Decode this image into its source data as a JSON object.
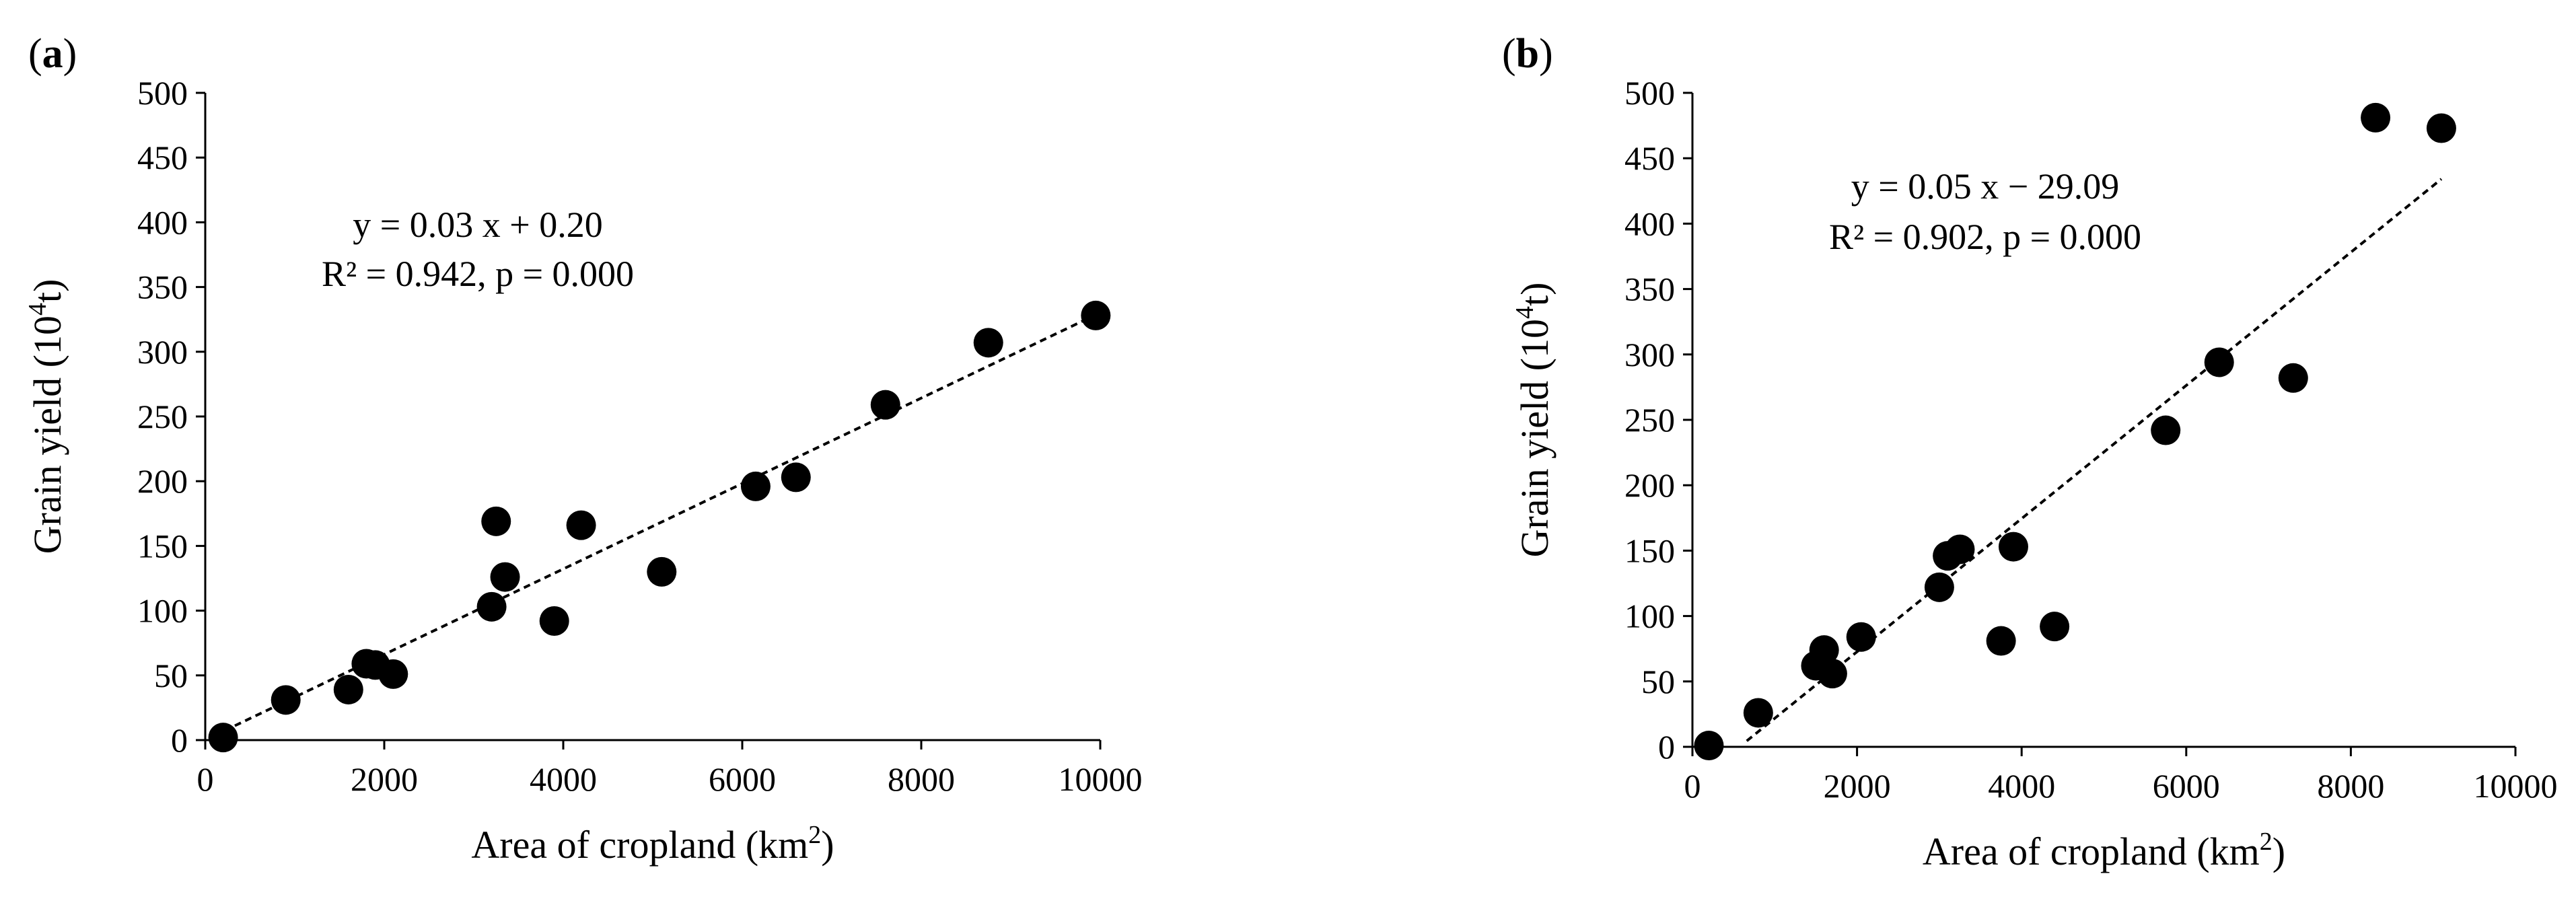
{
  "chart_data": [
    {
      "type": "scatter",
      "panel_label_bold": "a",
      "xlabel": "Area of cropland (km",
      "xlabel_sup": "2",
      "xlabel_end": ")",
      "ylabel": "Grain yield (10",
      "ylabel_sup": "4",
      "ylabel_end": "t)",
      "xlim": [
        0,
        10000
      ],
      "ylim": [
        0,
        500
      ],
      "xticks": [
        "0",
        "2000",
        "4000",
        "6000",
        "8000",
        "10000"
      ],
      "yticks": [
        "0",
        "50",
        "100",
        "150",
        "200",
        "250",
        "300",
        "350",
        "400",
        "450",
        "500"
      ],
      "equation": "y = 0.03 x + 0.20",
      "stats": "R² = 0.942, p = 0.000",
      "trendline": {
        "slope": 0.033,
        "intercept": 0.2,
        "x_range": [
          100,
          9950
        ]
      },
      "points": [
        {
          "x": 200,
          "y": 2
        },
        {
          "x": 900,
          "y": 31
        },
        {
          "x": 1600,
          "y": 39
        },
        {
          "x": 1800,
          "y": 59
        },
        {
          "x": 1900,
          "y": 58
        },
        {
          "x": 2100,
          "y": 51
        },
        {
          "x": 3200,
          "y": 103
        },
        {
          "x": 3250,
          "y": 169
        },
        {
          "x": 3350,
          "y": 126
        },
        {
          "x": 3900,
          "y": 92
        },
        {
          "x": 4200,
          "y": 166
        },
        {
          "x": 5100,
          "y": 130
        },
        {
          "x": 6150,
          "y": 196
        },
        {
          "x": 6600,
          "y": 203
        },
        {
          "x": 7600,
          "y": 259
        },
        {
          "x": 8750,
          "y": 307
        },
        {
          "x": 9950,
          "y": 328
        }
      ]
    },
    {
      "type": "scatter",
      "panel_label_bold": "b",
      "xlabel": "Area of cropland (km",
      "xlabel_sup": "2",
      "xlabel_end": ")",
      "ylabel": "Grain yield (10",
      "ylabel_sup": "4",
      "ylabel_end": "t)",
      "xlim": [
        0,
        10000
      ],
      "ylim": [
        0,
        500
      ],
      "xticks": [
        "0",
        "2000",
        "4000",
        "6000",
        "8000",
        "10000"
      ],
      "yticks": [
        "0",
        "50",
        "100",
        "150",
        "200",
        "250",
        "300",
        "350",
        "400",
        "450",
        "500"
      ],
      "equation": "y = 0.05 x − 29.09",
      "stats": "R² = 0.902, p = 0.000",
      "trendline": {
        "slope": 0.0509,
        "intercept": -29.09,
        "x_range": [
          660,
          9100
        ]
      },
      "points": [
        {
          "x": 200,
          "y": 1
        },
        {
          "x": 800,
          "y": 26
        },
        {
          "x": 1500,
          "y": 62
        },
        {
          "x": 1600,
          "y": 74
        },
        {
          "x": 1700,
          "y": 56
        },
        {
          "x": 2050,
          "y": 84
        },
        {
          "x": 3000,
          "y": 122
        },
        {
          "x": 3100,
          "y": 146
        },
        {
          "x": 3250,
          "y": 151
        },
        {
          "x": 3750,
          "y": 81
        },
        {
          "x": 3900,
          "y": 153
        },
        {
          "x": 4400,
          "y": 92
        },
        {
          "x": 5750,
          "y": 242
        },
        {
          "x": 6400,
          "y": 294
        },
        {
          "x": 7300,
          "y": 282
        },
        {
          "x": 8300,
          "y": 481
        },
        {
          "x": 9100,
          "y": 473
        }
      ]
    }
  ]
}
